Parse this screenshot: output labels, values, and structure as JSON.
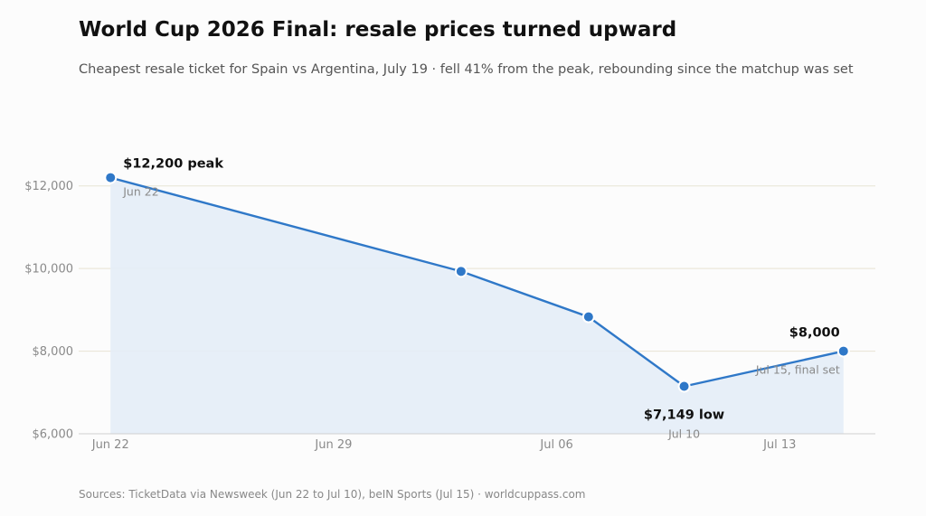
{
  "header": {
    "title": "World Cup 2026 Final: resale prices turned upward",
    "subtitle": "Cheapest resale ticket for Spain vs Argentina, July 19  ·  fell 41% from the peak, rebounding since the matchup was set"
  },
  "footer": {
    "source": "Sources: TicketData via Newsweek (Jun 22 to Jul 10), beIN Sports (Jul 15)  ·  worldcuppass.com"
  },
  "colors": {
    "line": "#2f78c8",
    "area": "#e4edf7",
    "grid": "#e7e3d3",
    "axis": "#cfcfcf",
    "background": "#fcfcfc"
  },
  "chart_data": {
    "type": "area",
    "x_axis_type": "date",
    "x": [
      "2026-06-22",
      "2026-07-03",
      "2026-07-07",
      "2026-07-10",
      "2026-07-15"
    ],
    "values": [
      12200,
      9930,
      8830,
      7149,
      8000
    ],
    "xlim": [
      "2026-06-21",
      "2026-07-16"
    ],
    "ylim": [
      6000,
      13000
    ],
    "x_ticks": [
      {
        "date": "2026-06-22",
        "label": "Jun 22"
      },
      {
        "date": "2026-06-29",
        "label": "Jun 29"
      },
      {
        "date": "2026-07-06",
        "label": "Jul 06"
      },
      {
        "date": "2026-07-13",
        "label": "Jul 13"
      }
    ],
    "y_ticks": [
      {
        "value": 6000,
        "label": "$6,000"
      },
      {
        "value": 8000,
        "label": "$8,000"
      },
      {
        "value": 10000,
        "label": "$10,000"
      },
      {
        "value": 12000,
        "label": "$12,000"
      }
    ],
    "grid": true,
    "legend": "none",
    "annotations": [
      {
        "date": "2026-06-22",
        "value": 12200,
        "label": "$12,200 peak",
        "sublabel": "Jun 22",
        "position": "upper-right"
      },
      {
        "date": "2026-07-10",
        "value": 7149,
        "label": "$7,149 low",
        "sublabel": "Jul 10",
        "position": "below"
      },
      {
        "date": "2026-07-15",
        "value": 8000,
        "label": "$8,000",
        "sublabel": "Jul 15, final set",
        "position": "upper-left-and-below"
      }
    ]
  }
}
